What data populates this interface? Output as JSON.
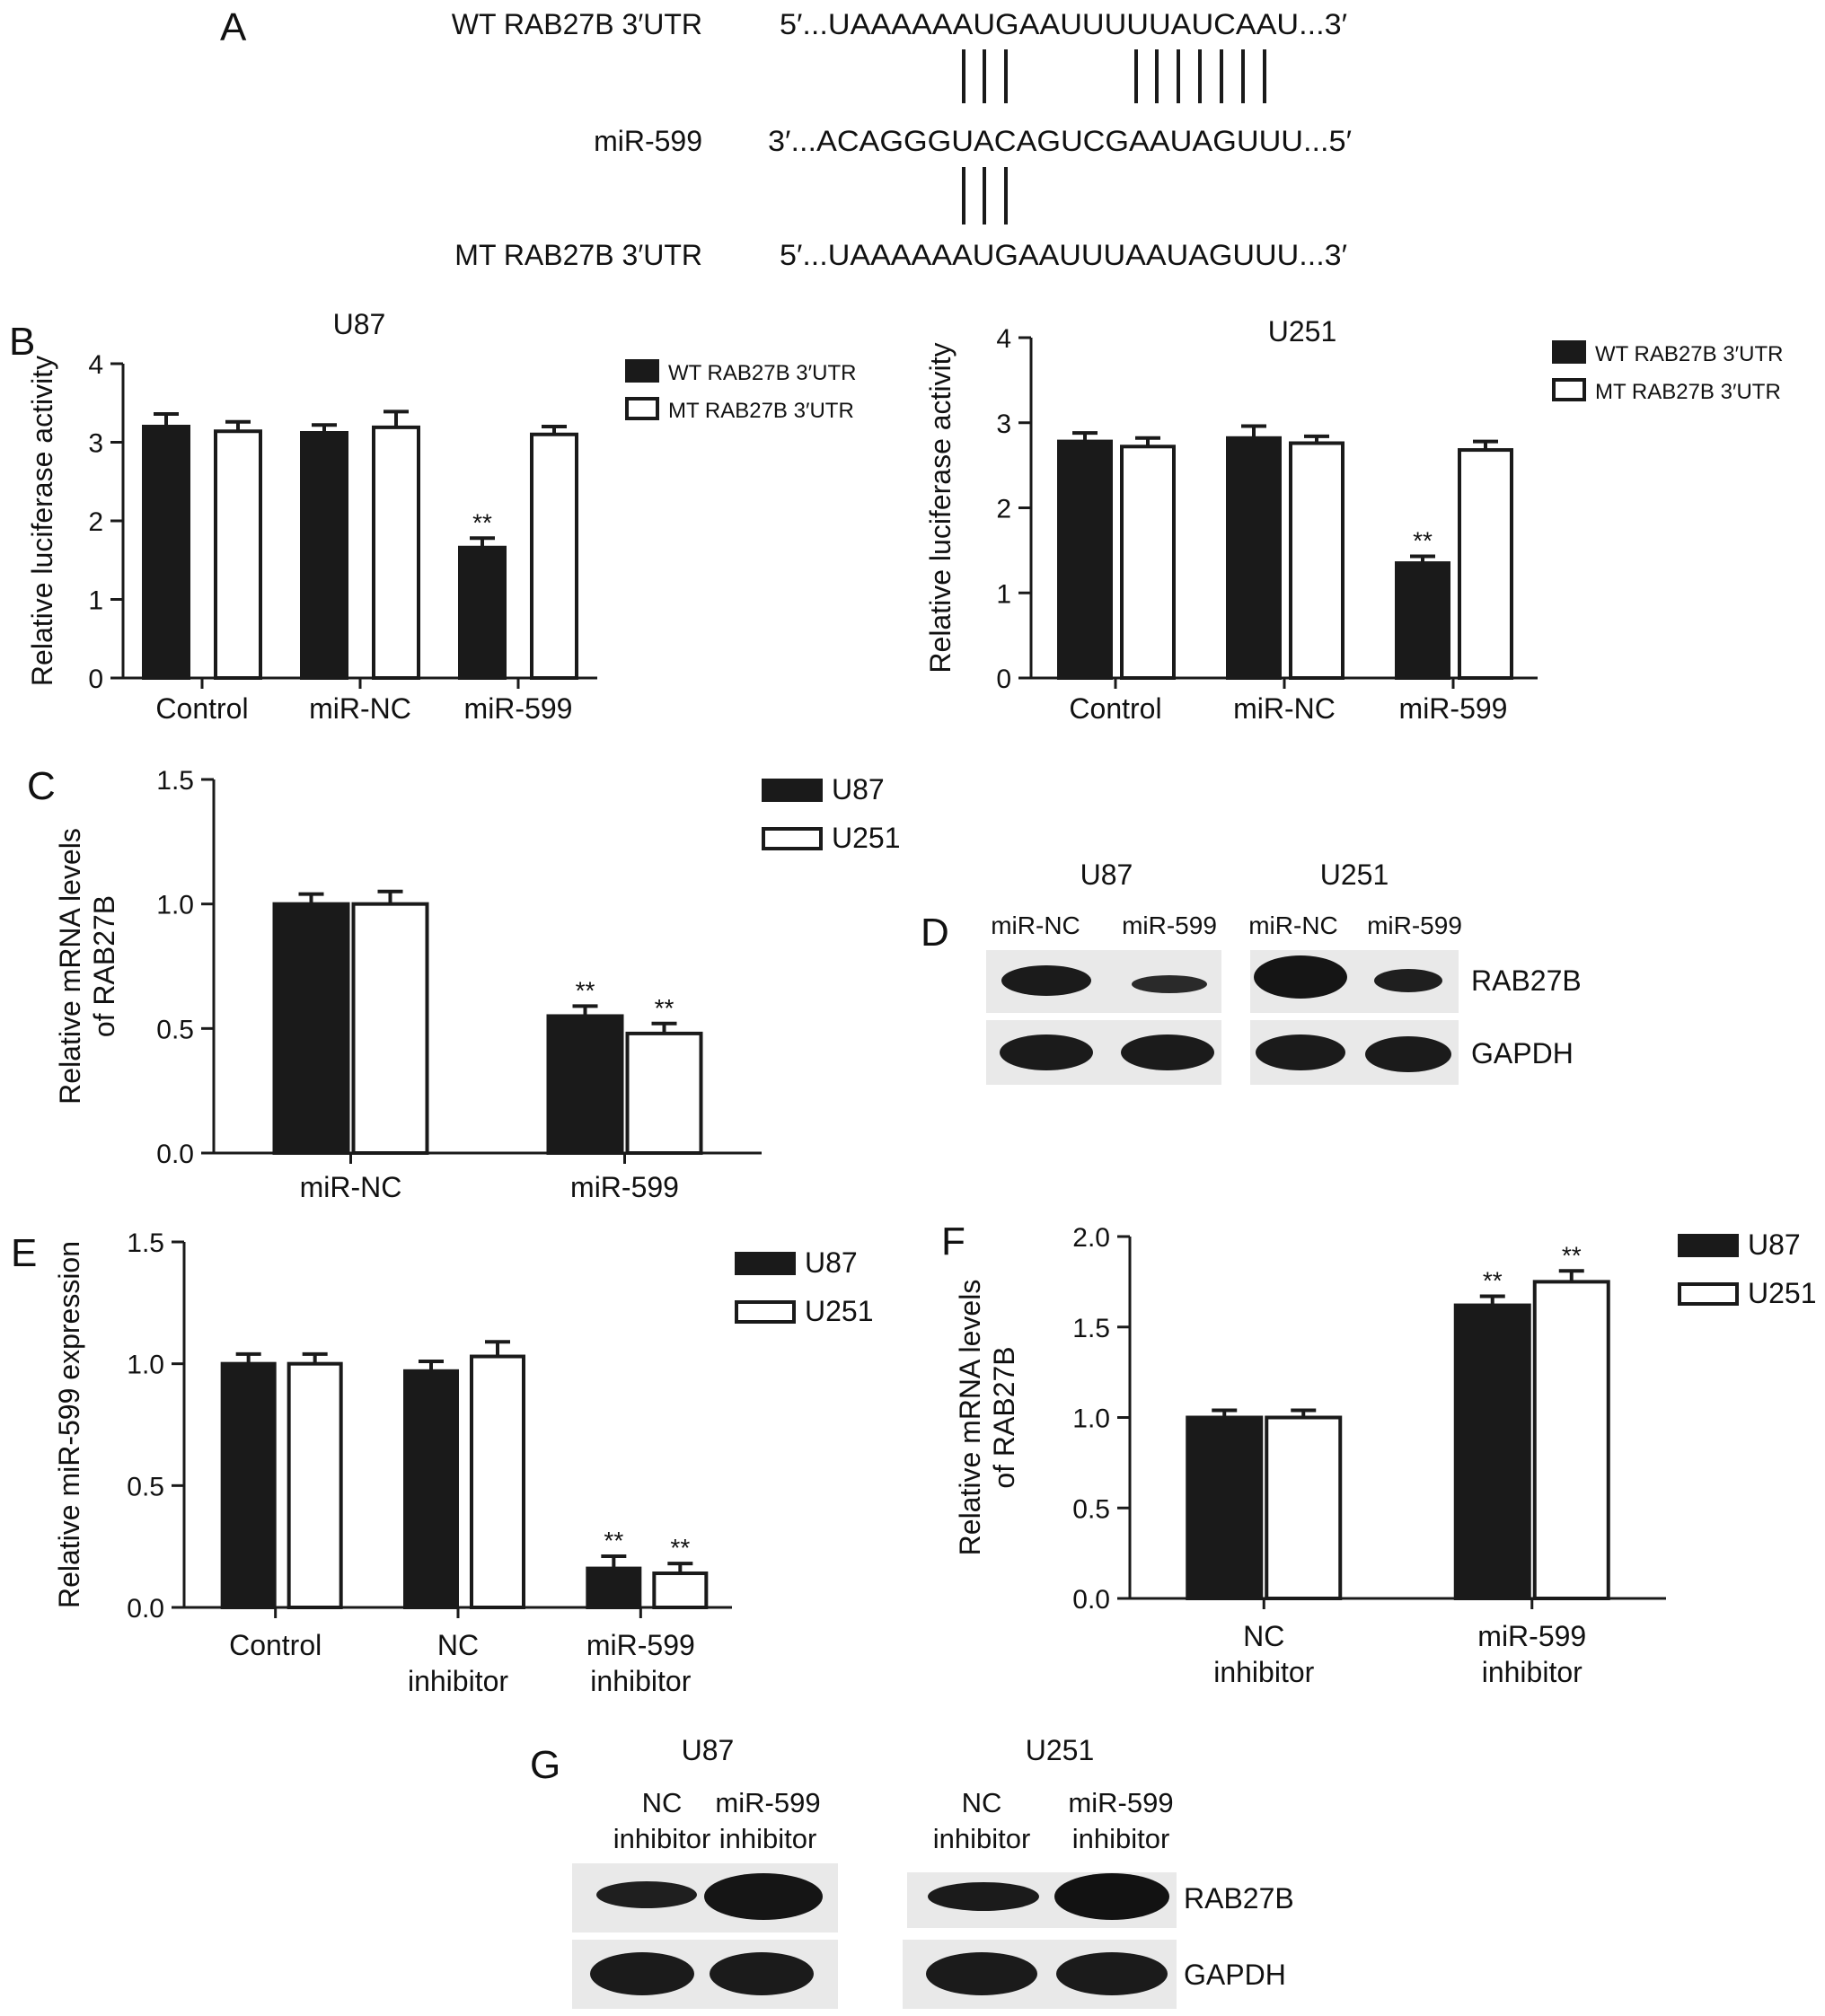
{
  "colors": {
    "wt_fill": "#1a1a1a",
    "mt_fill": "#ffffff",
    "stroke": "#1a1a1a",
    "blot_bg": "#e9e9e9",
    "band": "#1b1b1b"
  },
  "panel_a": {
    "label": "A",
    "rows": [
      {
        "name": "WT RAB27B 3′UTR",
        "seq": "5′...UAAAAAAUGAAUUUUUAUCAAU...3′"
      },
      {
        "name": "miR-599",
        "seq": "3′...ACAGGGUACAGUCGAAUAGUUU...5′"
      },
      {
        "name": "MT RAB27B 3′UTR",
        "seq": "5′...UAAAAAAUGAAUUUAAUAGUUU...3′"
      }
    ]
  },
  "panel_d": {
    "label": "D",
    "cell_lines": [
      "U87",
      "U251"
    ],
    "lanes": [
      "miR-NC",
      "miR-599",
      "miR-NC",
      "miR-599"
    ],
    "proteins": [
      "RAB27B",
      "GAPDH"
    ]
  },
  "panel_g": {
    "label": "G",
    "cell_lines": [
      "U87",
      "U251"
    ],
    "lanes": [
      [
        "NC",
        "inhibitor"
      ],
      [
        "miR-599",
        "inhibitor"
      ],
      [
        "NC",
        "inhibitor"
      ],
      [
        "miR-599",
        "inhibitor"
      ]
    ],
    "proteins": [
      "RAB27B",
      "GAPDH"
    ]
  },
  "chart_data": [
    {
      "id": "B_U87",
      "panel": "B",
      "type": "bar",
      "title": "U87",
      "categories": [
        "Control",
        "miR-NC",
        "miR-599"
      ],
      "ylabel": "Relative luciferase activity",
      "ylim": [
        0,
        4
      ],
      "yticks": [
        "0",
        "1",
        "2",
        "3",
        "4"
      ],
      "series": [
        {
          "name": "WT RAB27B 3′UTR",
          "values": [
            3.2,
            3.12,
            1.66
          ],
          "errors": [
            0.16,
            0.1,
            0.12
          ]
        },
        {
          "name": "MT RAB27B 3′UTR",
          "values": [
            3.14,
            3.19,
            3.1
          ],
          "errors": [
            0.12,
            0.2,
            0.1
          ]
        }
      ],
      "significance": [
        {
          "series": 0,
          "category": 2,
          "label": "**"
        }
      ],
      "legend": "top-right"
    },
    {
      "id": "B_U251",
      "panel": "",
      "type": "bar",
      "title": "U251",
      "categories": [
        "Control",
        "miR-NC",
        "miR-599"
      ],
      "ylabel": "Relative luciferase activity",
      "ylim": [
        0,
        4
      ],
      "yticks": [
        "0",
        "1",
        "2",
        "3",
        "4"
      ],
      "series": [
        {
          "name": "WT RAB27B 3′UTR",
          "values": [
            2.78,
            2.82,
            1.35
          ],
          "errors": [
            0.1,
            0.14,
            0.08
          ]
        },
        {
          "name": "MT RAB27B 3′UTR",
          "values": [
            2.72,
            2.76,
            2.68
          ],
          "errors": [
            0.1,
            0.08,
            0.1
          ]
        }
      ],
      "significance": [
        {
          "series": 0,
          "category": 2,
          "label": "**"
        }
      ],
      "legend": "top-right"
    },
    {
      "id": "C",
      "panel": "C",
      "type": "bar",
      "title": "",
      "categories": [
        "miR-NC",
        "miR-599"
      ],
      "ylabel": [
        "Relative mRNA levels",
        "of RAB27B"
      ],
      "ylim": [
        0,
        1.5
      ],
      "yticks": [
        "0.0",
        "0.5",
        "1.0",
        "1.5"
      ],
      "series": [
        {
          "name": "U87",
          "values": [
            1.0,
            0.55
          ],
          "errors": [
            0.04,
            0.04
          ]
        },
        {
          "name": "U251",
          "values": [
            1.0,
            0.48
          ],
          "errors": [
            0.05,
            0.04
          ]
        }
      ],
      "significance": [
        {
          "series": 0,
          "category": 1,
          "label": "**"
        },
        {
          "series": 1,
          "category": 1,
          "label": "**"
        }
      ],
      "legend": "top-right"
    },
    {
      "id": "E",
      "panel": "E",
      "type": "bar",
      "title": "",
      "categories": [
        [
          "Control"
        ],
        [
          "NC",
          "inhibitor"
        ],
        [
          "miR-599",
          "inhibitor"
        ]
      ],
      "ylabel": "Relative miR-599 expression",
      "ylim": [
        0,
        1.5
      ],
      "yticks": [
        "0.0",
        "0.5",
        "1.0",
        "1.5"
      ],
      "series": [
        {
          "name": "U87",
          "values": [
            1.0,
            0.97,
            0.16
          ],
          "errors": [
            0.04,
            0.04,
            0.05
          ]
        },
        {
          "name": "U251",
          "values": [
            1.0,
            1.03,
            0.14
          ],
          "errors": [
            0.04,
            0.06,
            0.04
          ]
        }
      ],
      "significance": [
        {
          "series": 0,
          "category": 2,
          "label": "**"
        },
        {
          "series": 1,
          "category": 2,
          "label": "**"
        }
      ],
      "legend": "top-right"
    },
    {
      "id": "F",
      "panel": "F",
      "type": "bar",
      "title": "",
      "categories": [
        [
          "NC",
          "inhibitor"
        ],
        [
          "miR-599",
          "inhibitor"
        ]
      ],
      "ylabel": [
        "Relative mRNA levels",
        "of RAB27B"
      ],
      "ylim": [
        0,
        2.0
      ],
      "yticks": [
        "0.0",
        "0.5",
        "1.0",
        "1.5",
        "2.0"
      ],
      "series": [
        {
          "name": "U87",
          "values": [
            1.0,
            1.62
          ],
          "errors": [
            0.04,
            0.05
          ]
        },
        {
          "name": "U251",
          "values": [
            1.0,
            1.75
          ],
          "errors": [
            0.04,
            0.06
          ]
        }
      ],
      "significance": [
        {
          "series": 0,
          "category": 1,
          "label": "**"
        },
        {
          "series": 1,
          "category": 1,
          "label": "**"
        }
      ],
      "legend": "top-right"
    }
  ]
}
